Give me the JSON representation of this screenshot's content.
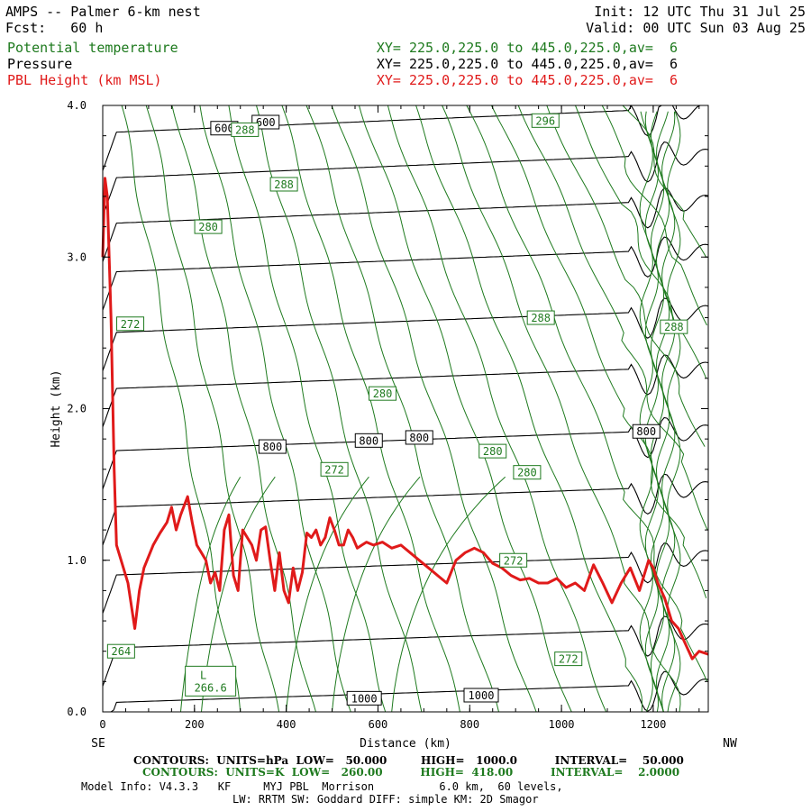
{
  "header": {
    "title": "AMPS -- Palmer 6-km nest",
    "fcst": "Fcst:   60 h",
    "init": "Init: 12 UTC Thu 31 Jul 25",
    "valid": "Valid: 00 UTC Sun 03 Aug 25",
    "fields": [
      {
        "name": "Potential temperature",
        "xy": "XY= 225.0,225.0 to 445.0,225.0,av=  6",
        "color": "#1e7a1e"
      },
      {
        "name": "Pressure",
        "xy": "XY= 225.0,225.0 to 445.0,225.0,av=  6",
        "color": "#000000"
      },
      {
        "name": "PBL Height (km MSL)",
        "xy": "XY= 225.0,225.0 to 445.0,225.0,av=  6",
        "color": "#e01a1a"
      }
    ]
  },
  "chart_data": {
    "type": "line",
    "title": "",
    "xlabel": "Distance (km)",
    "ylabel": "Height (km)",
    "xlim": [
      0,
      1320
    ],
    "ylim": [
      0,
      4.0
    ],
    "x_ticks": [
      "0",
      "200",
      "400",
      "600",
      "800",
      "1000",
      "1200"
    ],
    "y_ticks": [
      "0.0",
      "1.0",
      "2.0",
      "3.0",
      "4.0"
    ],
    "x_end_labels": {
      "left": "SE",
      "right": "NW"
    },
    "pressure_contours": {
      "color": "#000000",
      "labels": [
        {
          "text": "600",
          "x": 265,
          "y": 3.85
        },
        {
          "text": "600",
          "x": 355,
          "y": 3.89
        },
        {
          "text": "800",
          "x": 370,
          "y": 1.75
        },
        {
          "text": "800",
          "x": 580,
          "y": 1.79
        },
        {
          "text": "800",
          "x": 690,
          "y": 1.81
        },
        {
          "text": "800",
          "x": 1185,
          "y": 1.85
        },
        {
          "text": "1000",
          "x": 570,
          "y": 0.09
        },
        {
          "text": "1000",
          "x": 825,
          "y": 0.11
        }
      ]
    },
    "theta_contours": {
      "color": "#1e7a1e",
      "labels": [
        {
          "text": "296",
          "x": 965,
          "y": 3.9
        },
        {
          "text": "288",
          "x": 310,
          "y": 3.84
        },
        {
          "text": "288",
          "x": 395,
          "y": 3.48
        },
        {
          "text": "280",
          "x": 230,
          "y": 3.2
        },
        {
          "text": "272",
          "x": 60,
          "y": 2.56
        },
        {
          "text": "288",
          "x": 955,
          "y": 2.6
        },
        {
          "text": "288",
          "x": 1245,
          "y": 2.54
        },
        {
          "text": "280",
          "x": 610,
          "y": 2.1
        },
        {
          "text": "280",
          "x": 850,
          "y": 1.72
        },
        {
          "text": "280",
          "x": 925,
          "y": 1.58
        },
        {
          "text": "272",
          "x": 505,
          "y": 1.6
        },
        {
          "text": "272",
          "x": 895,
          "y": 1.0
        },
        {
          "text": "272",
          "x": 1015,
          "y": 0.35
        },
        {
          "text": "264",
          "x": 40,
          "y": 0.4
        }
      ],
      "low_marker": {
        "letter": "L",
        "value": "266.6",
        "x": 235,
        "y": 0.2
      }
    },
    "series": [
      {
        "name": "PBL Height (km MSL)",
        "color": "#e01a1a",
        "x": [
          0,
          5,
          10,
          18,
          25,
          30,
          40,
          55,
          70,
          80,
          90,
          110,
          125,
          140,
          150,
          160,
          170,
          185,
          195,
          205,
          215,
          225,
          235,
          245,
          255,
          265,
          275,
          285,
          295,
          305,
          315,
          325,
          335,
          345,
          355,
          365,
          375,
          385,
          395,
          405,
          415,
          425,
          435,
          445,
          455,
          465,
          475,
          485,
          495,
          505,
          515,
          525,
          535,
          545,
          555,
          565,
          575,
          590,
          610,
          630,
          650,
          670,
          690,
          710,
          730,
          750,
          770,
          790,
          810,
          830,
          850,
          870,
          890,
          910,
          930,
          950,
          970,
          990,
          1010,
          1030,
          1050,
          1070,
          1090,
          1110,
          1130,
          1150,
          1170,
          1190,
          1200,
          1210,
          1225,
          1240,
          1255,
          1270,
          1285,
          1300,
          1320
        ],
        "y": [
          3.0,
          3.52,
          3.4,
          2.6,
          1.6,
          1.1,
          1.0,
          0.85,
          0.55,
          0.8,
          0.95,
          1.1,
          1.18,
          1.25,
          1.35,
          1.2,
          1.3,
          1.42,
          1.25,
          1.1,
          1.05,
          1.0,
          0.85,
          0.92,
          0.8,
          1.2,
          1.3,
          0.9,
          0.8,
          1.2,
          1.15,
          1.1,
          1.0,
          1.2,
          1.22,
          1.0,
          0.8,
          1.05,
          0.8,
          0.72,
          0.95,
          0.8,
          0.92,
          1.18,
          1.15,
          1.2,
          1.1,
          1.15,
          1.28,
          1.2,
          1.1,
          1.1,
          1.2,
          1.15,
          1.08,
          1.1,
          1.12,
          1.1,
          1.12,
          1.08,
          1.1,
          1.05,
          1.0,
          0.95,
          0.9,
          0.85,
          1.0,
          1.05,
          1.08,
          1.05,
          0.98,
          0.95,
          0.9,
          0.87,
          0.88,
          0.85,
          0.85,
          0.88,
          0.82,
          0.85,
          0.8,
          0.97,
          0.85,
          0.72,
          0.85,
          0.95,
          0.8,
          1.0,
          0.95,
          0.85,
          0.75,
          0.6,
          0.55,
          0.45,
          0.35,
          0.4,
          0.38
        ]
      }
    ]
  },
  "footer": {
    "pressure_contours": "CONTOURS:  UNITS=hPa  LOW=   50.000         HIGH=   1000.0          INTERVAL=    50.000",
    "theta_contours": "CONTOURS:  UNITS=K  LOW=   260.00          HIGH=  418.00          INTERVAL=    2.0000",
    "model_info_1": "Model Info: V4.3.3   KF     MYJ PBL  Morrison          6.0 km,  60 levels,",
    "model_info_2": "LW: RRTM SW: Goddard DIFF: simple KM: 2D Smagor"
  }
}
